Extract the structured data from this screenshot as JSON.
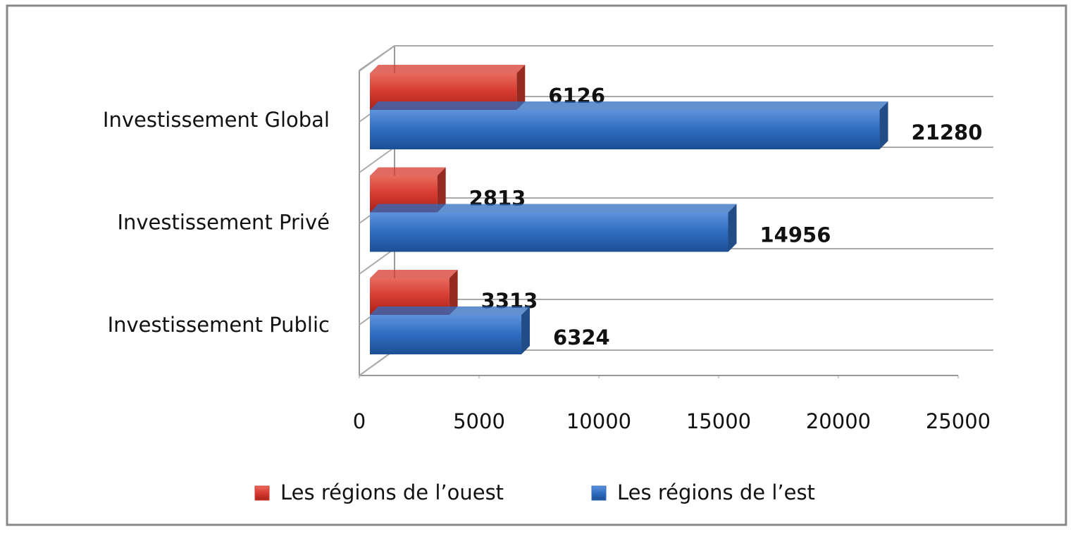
{
  "chart_data": {
    "type": "bar",
    "orientation": "horizontal",
    "categories": [
      "Investissement Public",
      "Investissement Privé",
      "Investissement Global"
    ],
    "series": [
      {
        "name": "Les régions de l’ouest",
        "color": "#d63a2f",
        "values": [
          3313,
          2813,
          6126
        ]
      },
      {
        "name": "Les régions de l’est",
        "color": "#2f6cc0",
        "values": [
          6324,
          14956,
          21280
        ]
      }
    ],
    "xlim": [
      0,
      25000
    ],
    "xticks": [
      0,
      5000,
      10000,
      15000,
      20000,
      25000
    ],
    "grid": false,
    "legend": "bottom"
  }
}
